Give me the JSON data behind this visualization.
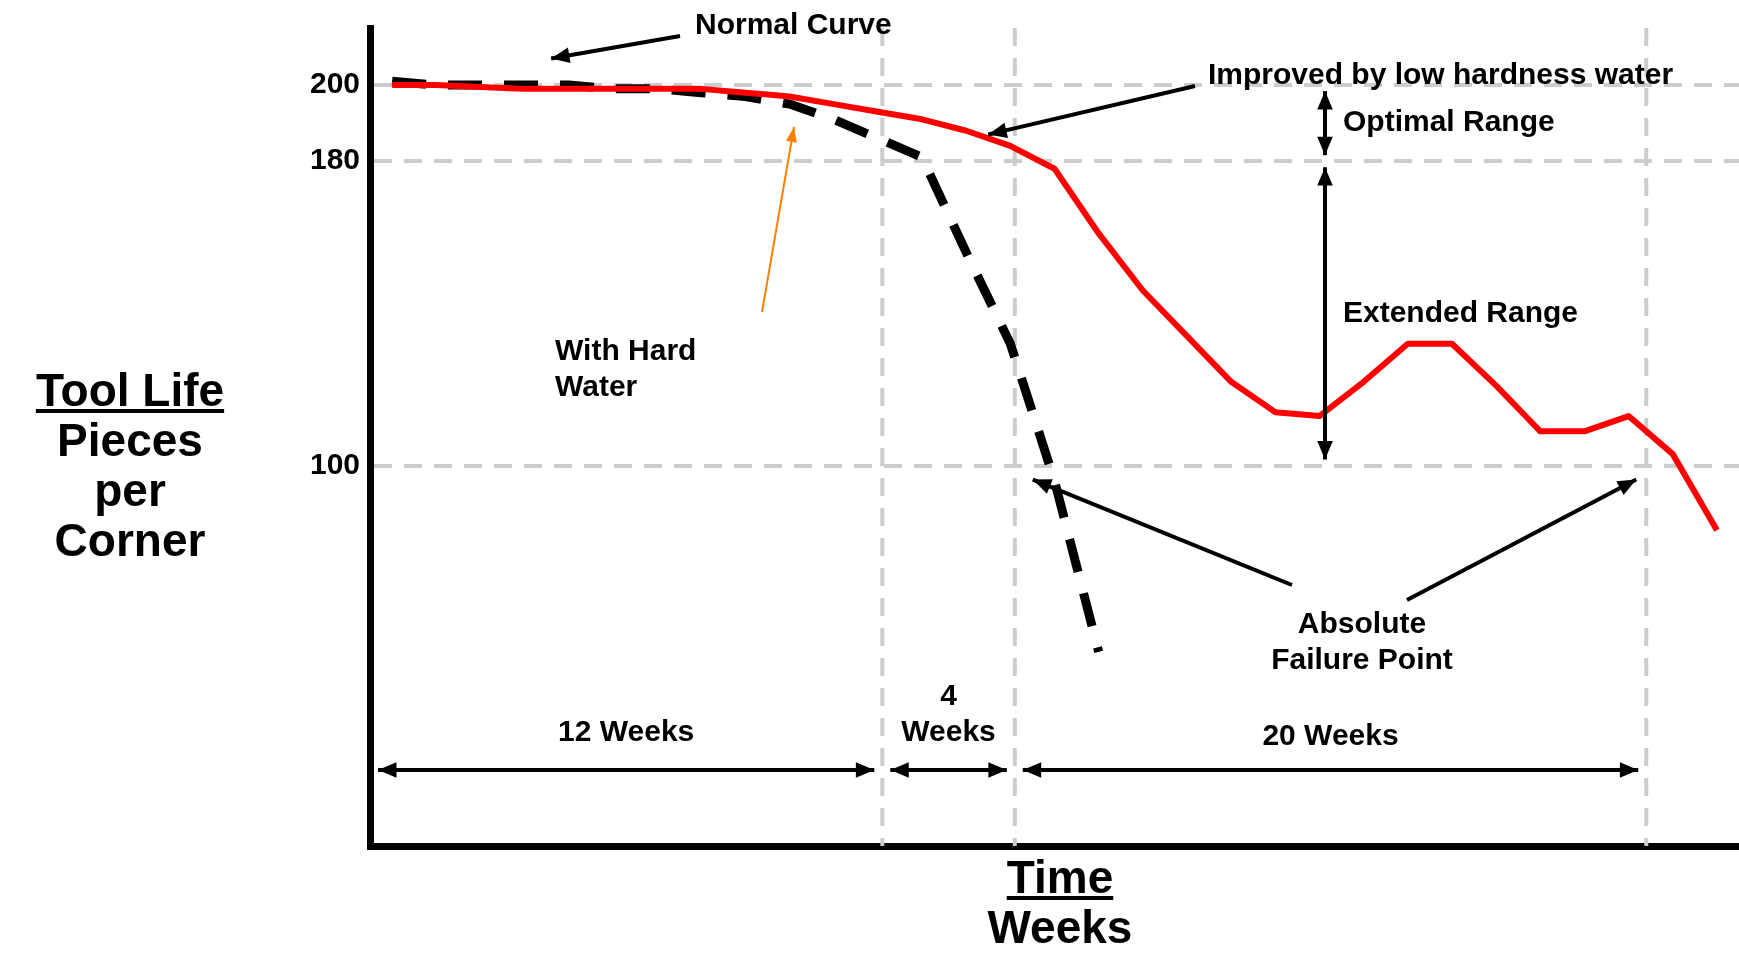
{
  "chart_data": {
    "type": "line",
    "xlabel": "Time\nWeeks",
    "ylabel": "Tool Life\nPieces\nper\nCorner",
    "categories": [
      null,
      null,
      null,
      null,
      null,
      null,
      null,
      null,
      null,
      null,
      null,
      null,
      null,
      null,
      null,
      null,
      null,
      null,
      null,
      null,
      null,
      null,
      null,
      null,
      null,
      null,
      null,
      null,
      null,
      null,
      null
    ],
    "ylim": [
      0,
      215
    ],
    "yticks": [
      100,
      180,
      200
    ],
    "grid": "y",
    "tick_labels": "y",
    "series": [
      {
        "color": "#ff0000",
        "line_style": "solid",
        "values": [
          200,
          200,
          199.5,
          199,
          199,
          199,
          199,
          199,
          198,
          197,
          195,
          193,
          191,
          188,
          184,
          178,
          161,
          146,
          134,
          122,
          114,
          113,
          122,
          132,
          132,
          121,
          109,
          109,
          113,
          103,
          83
        ]
      },
      {
        "color": "#000000",
        "line_style": "dashed",
        "values": [
          201,
          200,
          200,
          200,
          200,
          199,
          199,
          198,
          197,
          195,
          191,
          186,
          181,
          156,
          132,
          96,
          51,
          null,
          null,
          null,
          null,
          null,
          null,
          null,
          null,
          null,
          null,
          null,
          null,
          null,
          null
        ]
      }
    ],
    "annotations": [
      "Normal Curve",
      "Improved by low hardness water",
      "With Hard Water",
      "Optimal Range",
      "Extended Range",
      "Absolute Failure Point",
      "12 Weeks",
      "4 Weeks",
      "20 Weeks"
    ]
  }
}
